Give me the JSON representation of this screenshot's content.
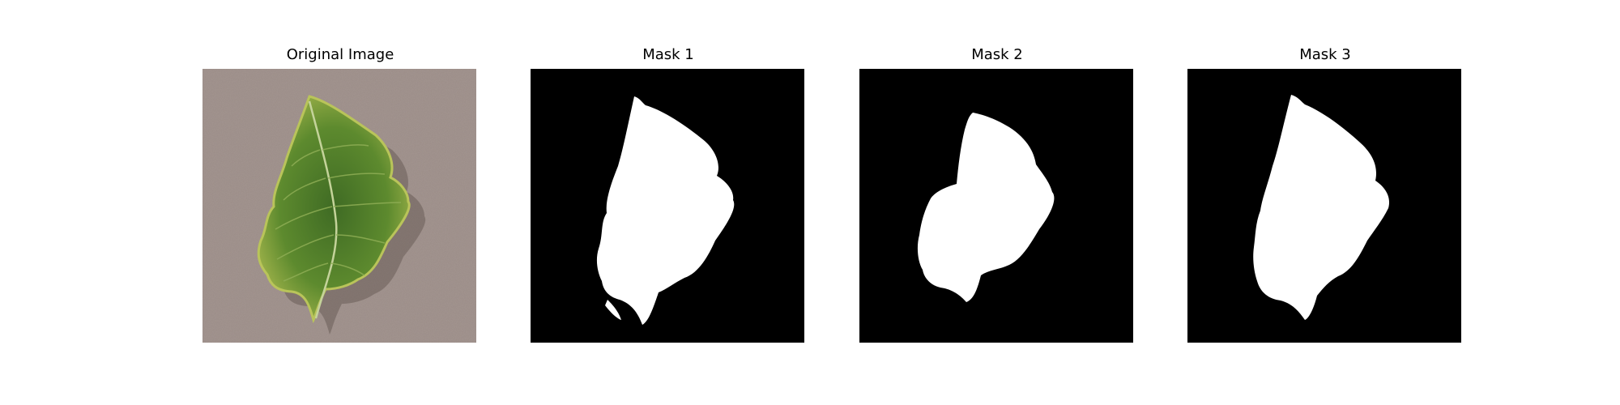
{
  "figure": {
    "panels": [
      {
        "title": "Original Image",
        "kind": "photo"
      },
      {
        "title": "Mask 1",
        "kind": "mask"
      },
      {
        "title": "Mask 2",
        "kind": "mask"
      },
      {
        "title": "Mask 3",
        "kind": "mask"
      }
    ]
  },
  "colors": {
    "photo_background": "#9b8c87",
    "leaf_dark": "#3f6b24",
    "leaf_mid": "#6f9a34",
    "leaf_edge": "#a8b84e",
    "vein": "#c4d39a",
    "mask_background": "#000000",
    "mask_foreground": "#ffffff"
  }
}
